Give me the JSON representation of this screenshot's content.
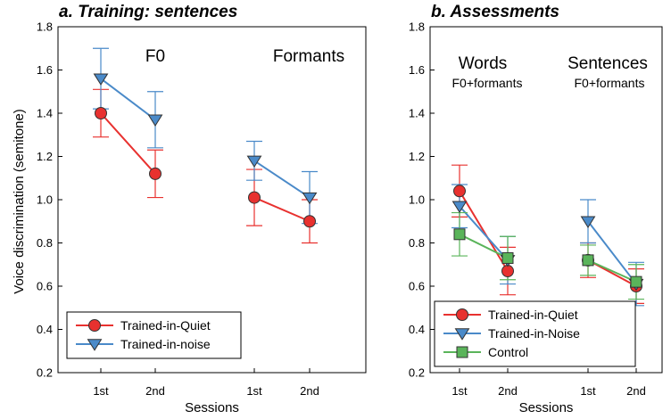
{
  "ylabel": "Voice discrimination (semitone)",
  "chart_data": [
    {
      "type": "line",
      "title": "a. Training: sentences",
      "xlabel": "Sessions",
      "ylim": [
        0.2,
        1.8
      ],
      "yticks": [
        "0.2",
        "0.4",
        "0.6",
        "0.8",
        "1.0",
        "1.2",
        "1.4",
        "1.6",
        "1.8"
      ],
      "categories": [
        "1st",
        "2nd",
        "1st",
        "2nd"
      ],
      "groups": [
        {
          "label": "F0",
          "label2": ""
        },
        {
          "label": "Formants",
          "label2": ""
        }
      ],
      "series": [
        {
          "name": "Trained-in-Quiet",
          "color": "#e8312f",
          "marker": "circle",
          "values": [
            1.4,
            1.12,
            1.01,
            0.9
          ],
          "err": [
            0.11,
            0.11,
            0.13,
            0.1
          ]
        },
        {
          "name": "Trained-in-noise",
          "color": "#4a8ac9",
          "marker": "triangle-down",
          "values": [
            1.56,
            1.37,
            1.18,
            1.01
          ],
          "err": [
            0.14,
            0.13,
            0.09,
            0.12
          ]
        }
      ],
      "legend": "bottom-left"
    },
    {
      "type": "line",
      "title": "b. Assessments",
      "xlabel": "Sessions",
      "ylim": [
        0.2,
        1.8
      ],
      "yticks": [
        "0.2",
        "0.4",
        "0.6",
        "0.8",
        "1.0",
        "1.2",
        "1.4",
        "1.6",
        "1.8"
      ],
      "categories": [
        "1st",
        "2nd",
        "1st",
        "2nd"
      ],
      "groups": [
        {
          "label": "Words",
          "label2": "F0+formants"
        },
        {
          "label": "Sentences",
          "label2": "F0+formants"
        }
      ],
      "series": [
        {
          "name": "Trained-in-Quiet",
          "color": "#e8312f",
          "marker": "circle",
          "values": [
            1.04,
            0.67,
            0.72,
            0.6
          ],
          "err": [
            0.12,
            0.11,
            0.08,
            0.08
          ]
        },
        {
          "name": "Trained-in-Noise",
          "color": "#4a8ac9",
          "marker": "triangle-down",
          "values": [
            0.97,
            0.72,
            0.9,
            0.61
          ],
          "err": [
            0.1,
            0.11,
            0.1,
            0.1
          ]
        },
        {
          "name": "Control",
          "color": "#5ab45a",
          "marker": "square",
          "values": [
            0.84,
            0.73,
            0.72,
            0.62
          ],
          "err": [
            0.1,
            0.1,
            0.07,
            0.08
          ]
        }
      ],
      "legend": "bottom-left"
    }
  ]
}
